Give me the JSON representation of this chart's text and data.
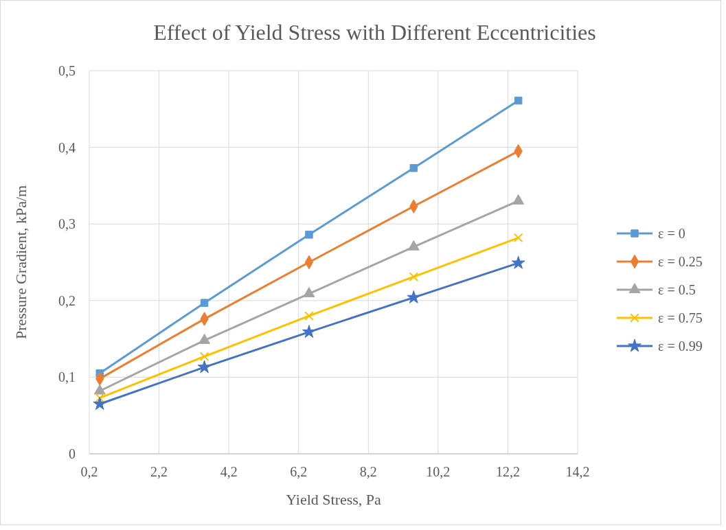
{
  "chart_data": {
    "type": "line",
    "title": "Effect of Yield Stress with Different Eccentricities",
    "xlabel": "Yield Stress, Pa",
    "ylabel": "Pressure Gradient, kPa/m",
    "x": [
      0.5,
      3.5,
      6.5,
      9.5,
      12.5
    ],
    "series": [
      {
        "name": "ε = 0",
        "color": "#5b9bd5",
        "marker": "square",
        "values": [
          0.105,
          0.197,
          0.286,
          0.373,
          0.461
        ]
      },
      {
        "name": "ε = 0.25",
        "color": "#ed7d31",
        "marker": "diamond",
        "values": [
          0.098,
          0.176,
          0.25,
          0.323,
          0.395
        ]
      },
      {
        "name": "ε = 0.5",
        "color": "#a5a5a5",
        "marker": "triangle",
        "values": [
          0.082,
          0.148,
          0.209,
          0.27,
          0.33
        ]
      },
      {
        "name": "ε = 0.75",
        "color": "#ffc000",
        "marker": "cross",
        "values": [
          0.073,
          0.127,
          0.18,
          0.231,
          0.282
        ]
      },
      {
        "name": "ε = 0.99",
        "color": "#4472c4",
        "marker": "star",
        "values": [
          0.065,
          0.113,
          0.159,
          0.204,
          0.249
        ]
      }
    ],
    "xlim": [
      0.2,
      14.2
    ],
    "xticks": [
      {
        "value": 0.2,
        "label": "0,2"
      },
      {
        "value": 2.2,
        "label": "2,2"
      },
      {
        "value": 4.2,
        "label": "4,2"
      },
      {
        "value": 6.2,
        "label": "6,2"
      },
      {
        "value": 8.2,
        "label": "8,2"
      },
      {
        "value": 10.2,
        "label": "10,2"
      },
      {
        "value": 12.2,
        "label": "12,2"
      },
      {
        "value": 14.2,
        "label": "14,2"
      }
    ],
    "ylim": [
      0,
      0.5
    ],
    "yticks": [
      0,
      {
        "value": 0.1,
        "label": "0,1"
      },
      {
        "value": 0.2,
        "label": "0,2"
      },
      {
        "value": 0.3,
        "label": "0,3"
      },
      {
        "value": 0.4,
        "label": "0,4"
      },
      {
        "value": 0.5,
        "label": "0,5"
      }
    ],
    "grid": true,
    "legend": "right",
    "line_style": "solid"
  }
}
